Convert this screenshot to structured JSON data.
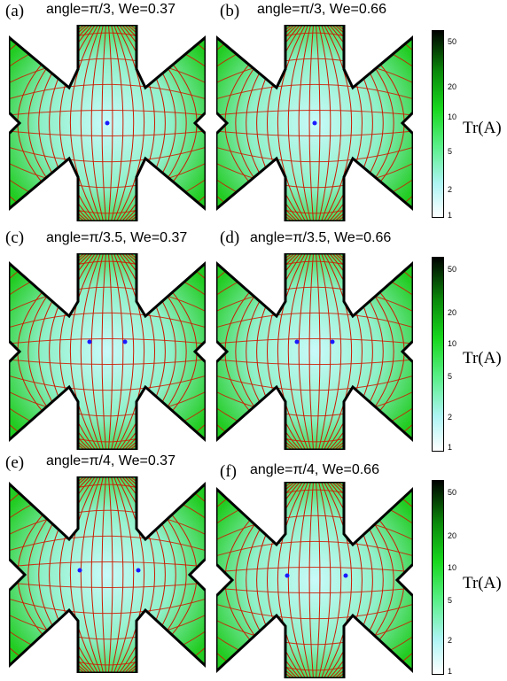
{
  "panels": [
    {
      "label": "(a)",
      "title": "angle=π/3, We=0.37"
    },
    {
      "label": "(b)",
      "title": "angle=π/3, We=0.66"
    },
    {
      "label": "(c)",
      "title": "angle=π/3.5, We=0.37"
    },
    {
      "label": "(d)",
      "title": "angle=π/3.5, We=0.66"
    },
    {
      "label": "(e)",
      "title": "angle=π/4, We=0.37"
    },
    {
      "label": "(f)",
      "title": "angle=π/4, We=0.66"
    }
  ],
  "colorbar": {
    "label": "Tr(A)",
    "ticks": [
      "50",
      "20",
      "10",
      "5",
      "2",
      "1"
    ]
  },
  "colors": {
    "streamline": "#cc1a00",
    "stagnation_point": "#1a1aff",
    "wall": "#000000",
    "field_high": "#00aa00",
    "field_low": "#e6fbfb"
  }
}
